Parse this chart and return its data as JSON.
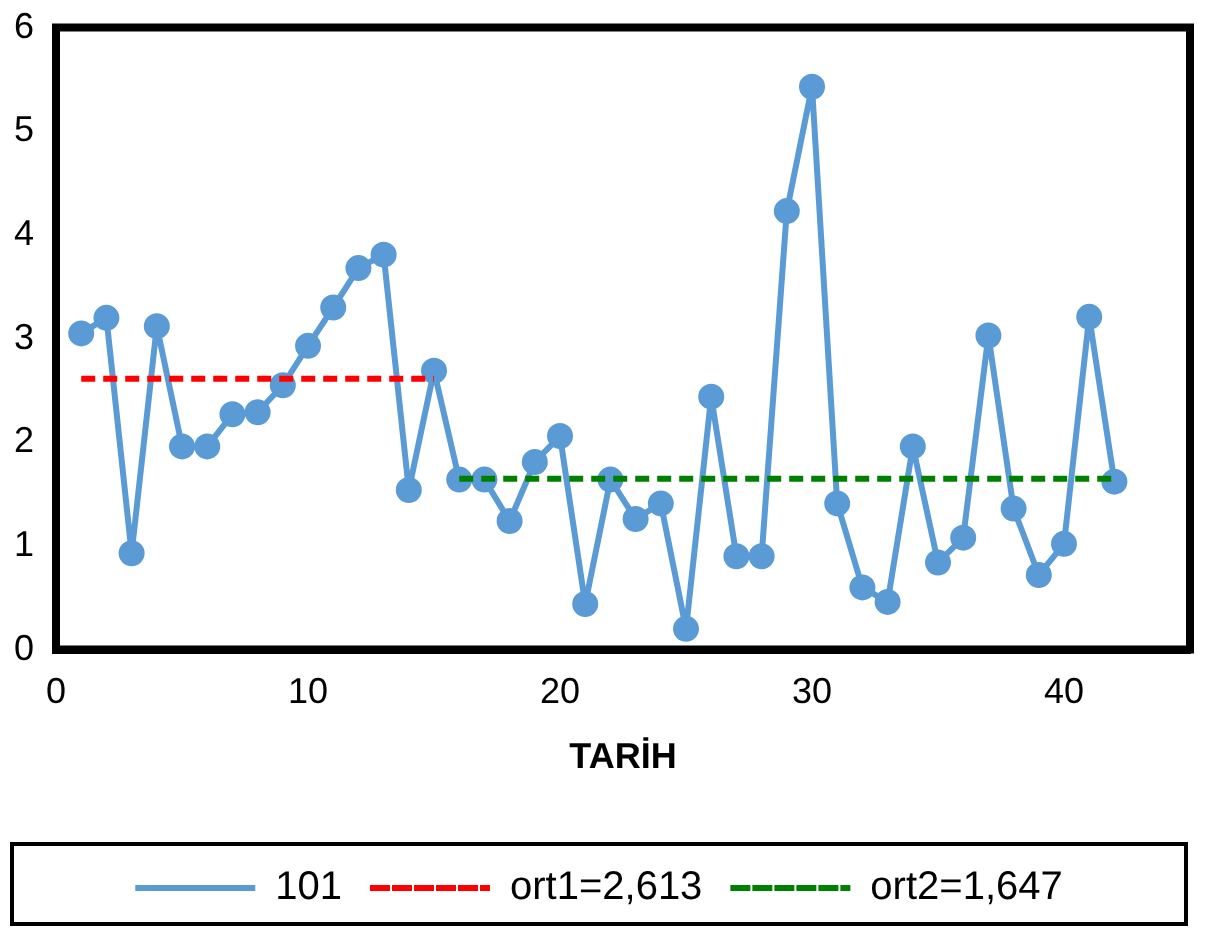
{
  "chart_data": {
    "type": "line",
    "xlabel": "TARİH",
    "xlim": [
      0,
      45
    ],
    "xticks": [
      0,
      10,
      20,
      30,
      40
    ],
    "ylim": [
      0,
      6
    ],
    "yticks": [
      0,
      1,
      2,
      3,
      4,
      5,
      6
    ],
    "grid": false,
    "legend": "bottom",
    "series": [
      {
        "name": "101",
        "color": "#5b9bd5",
        "marker": "circle",
        "line_style": "solid",
        "x": [
          1,
          2,
          3,
          4,
          5,
          6,
          7,
          8,
          9,
          10,
          11,
          12,
          13,
          14,
          15,
          16,
          17,
          18,
          19,
          20,
          21,
          22,
          23,
          24,
          25,
          26,
          27,
          28,
          29,
          30,
          31,
          32,
          33,
          34,
          35,
          36,
          37,
          38,
          39,
          40,
          41,
          42
        ],
        "values": [
          3.05,
          3.2,
          0.93,
          3.12,
          1.96,
          1.96,
          2.27,
          2.29,
          2.55,
          2.93,
          3.3,
          3.68,
          3.81,
          1.54,
          2.69,
          1.64,
          1.64,
          1.24,
          1.81,
          2.06,
          0.44,
          1.64,
          1.26,
          1.41,
          0.2,
          2.44,
          0.9,
          0.9,
          4.23,
          5.43,
          1.41,
          0.6,
          0.46,
          1.96,
          0.84,
          1.08,
          3.03,
          1.36,
          0.72,
          1.02,
          3.21,
          1.62
        ]
      },
      {
        "name": "ort1=2,613",
        "color": "#ff0000",
        "marker": "none",
        "line_style": "dashed",
        "x": [
          1,
          15
        ],
        "values": [
          2.613,
          2.613
        ]
      },
      {
        "name": "ort2=1,647",
        "color": "#008000",
        "marker": "none",
        "line_style": "dashed",
        "x": [
          16,
          42
        ],
        "values": [
          1.647,
          1.647
        ]
      }
    ]
  }
}
